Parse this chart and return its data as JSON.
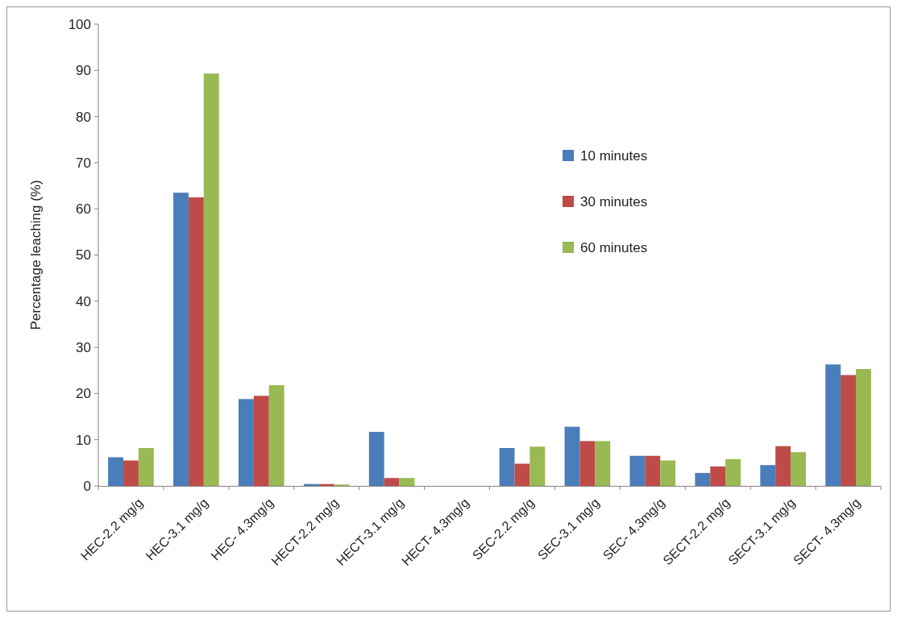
{
  "chart_data": {
    "type": "bar",
    "ylabel": "Percentage leaching (%)",
    "categories": [
      "HEC-2.2 mg/g",
      "HEC-3.1 mg/g",
      "HEC- 4.3mg/g",
      "HECT-2.2 mg/g",
      "HECT-3.1 mg/g",
      "HECT- 4.3mg/g",
      "SEC-2.2 mg/g",
      "SEC-3.1 mg/g",
      "SEC- 4.3mg/g",
      "SECT-2.2 mg/g",
      "SECT-3.1 mg/g",
      "SECT- 4.3mg/g"
    ],
    "series": [
      {
        "name": "10 minutes",
        "color": "#4a7ebb",
        "values": [
          6.2,
          63.5,
          18.8,
          0.4,
          11.7,
          0,
          8.2,
          12.8,
          6.5,
          2.8,
          4.5,
          26.3
        ]
      },
      {
        "name": "30 minutes",
        "color": "#be4b48",
        "values": [
          5.5,
          62.5,
          19.5,
          0.4,
          1.7,
          0,
          4.8,
          9.7,
          6.5,
          4.2,
          8.6,
          24.0
        ]
      },
      {
        "name": "60 minutes",
        "color": "#98b954",
        "values": [
          8.2,
          89.3,
          21.8,
          0.3,
          1.7,
          0,
          8.5,
          9.7,
          5.5,
          5.8,
          7.3,
          25.3
        ]
      }
    ],
    "ylim": [
      0,
      100
    ],
    "yticks": [
      0,
      10,
      20,
      30,
      40,
      50,
      60,
      70,
      80,
      90,
      100
    ],
    "legend": "top right",
    "grid": false
  }
}
